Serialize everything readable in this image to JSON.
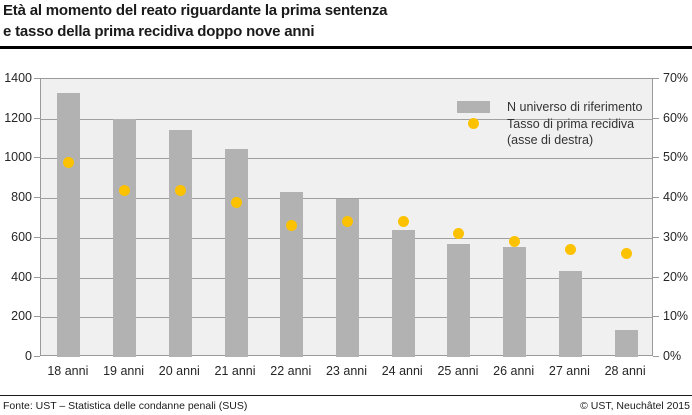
{
  "title": {
    "line1": "Età al momento del reato riguardante la prima sentenza",
    "line2": "e tasso della prima recidiva doppo nove anni"
  },
  "legend": {
    "bars_label": "N universo di riferimento",
    "dots_label_line1": "Tasso di prima recidiva",
    "dots_label_line2": "(asse di destra)"
  },
  "footer": {
    "source": "Fonte: UST – Statistica delle condanne penali (SUS)",
    "copyright": "© UST, Neuchâtel 2015"
  },
  "colors": {
    "bar": "#b2b2b2",
    "dot": "#fcc200",
    "plot_background": "#f0f0f0",
    "gridline": "#a0a0a0",
    "title_rule": "#000000"
  },
  "chart_data": {
    "type": "bar",
    "title": "Età al momento del reato riguardante la prima sentenza e tasso della prima recidiva doppo nove anni",
    "categories": [
      "18 anni",
      "19 anni",
      "20 anni",
      "21 anni",
      "22 anni",
      "23 anni",
      "24 anni",
      "25 anni",
      "26 anni",
      "27 anni",
      "28 anni"
    ],
    "series": [
      {
        "name": "N universo di riferimento",
        "type": "bar",
        "axis": "left",
        "values": [
          1330,
          1200,
          1145,
          1050,
          830,
          795,
          640,
          570,
          555,
          435,
          135
        ]
      },
      {
        "name": "Tasso di prima recidiva (asse di destra)",
        "type": "scatter",
        "axis": "right",
        "values": [
          49,
          42,
          42,
          39,
          33,
          34,
          34,
          31,
          29,
          27,
          26
        ],
        "unit": "%"
      }
    ],
    "left_axis": {
      "min": 0,
      "max": 1400,
      "step": 200,
      "ticks": [
        "0",
        "200",
        "400",
        "600",
        "800",
        "1000",
        "1200",
        "1400"
      ]
    },
    "right_axis": {
      "min": 0,
      "max": 70,
      "step": 10,
      "ticks": [
        "0%",
        "10%",
        "20%",
        "30%",
        "40%",
        "50%",
        "60%",
        "70%"
      ]
    },
    "grid": true,
    "legend_position": "top-right"
  }
}
